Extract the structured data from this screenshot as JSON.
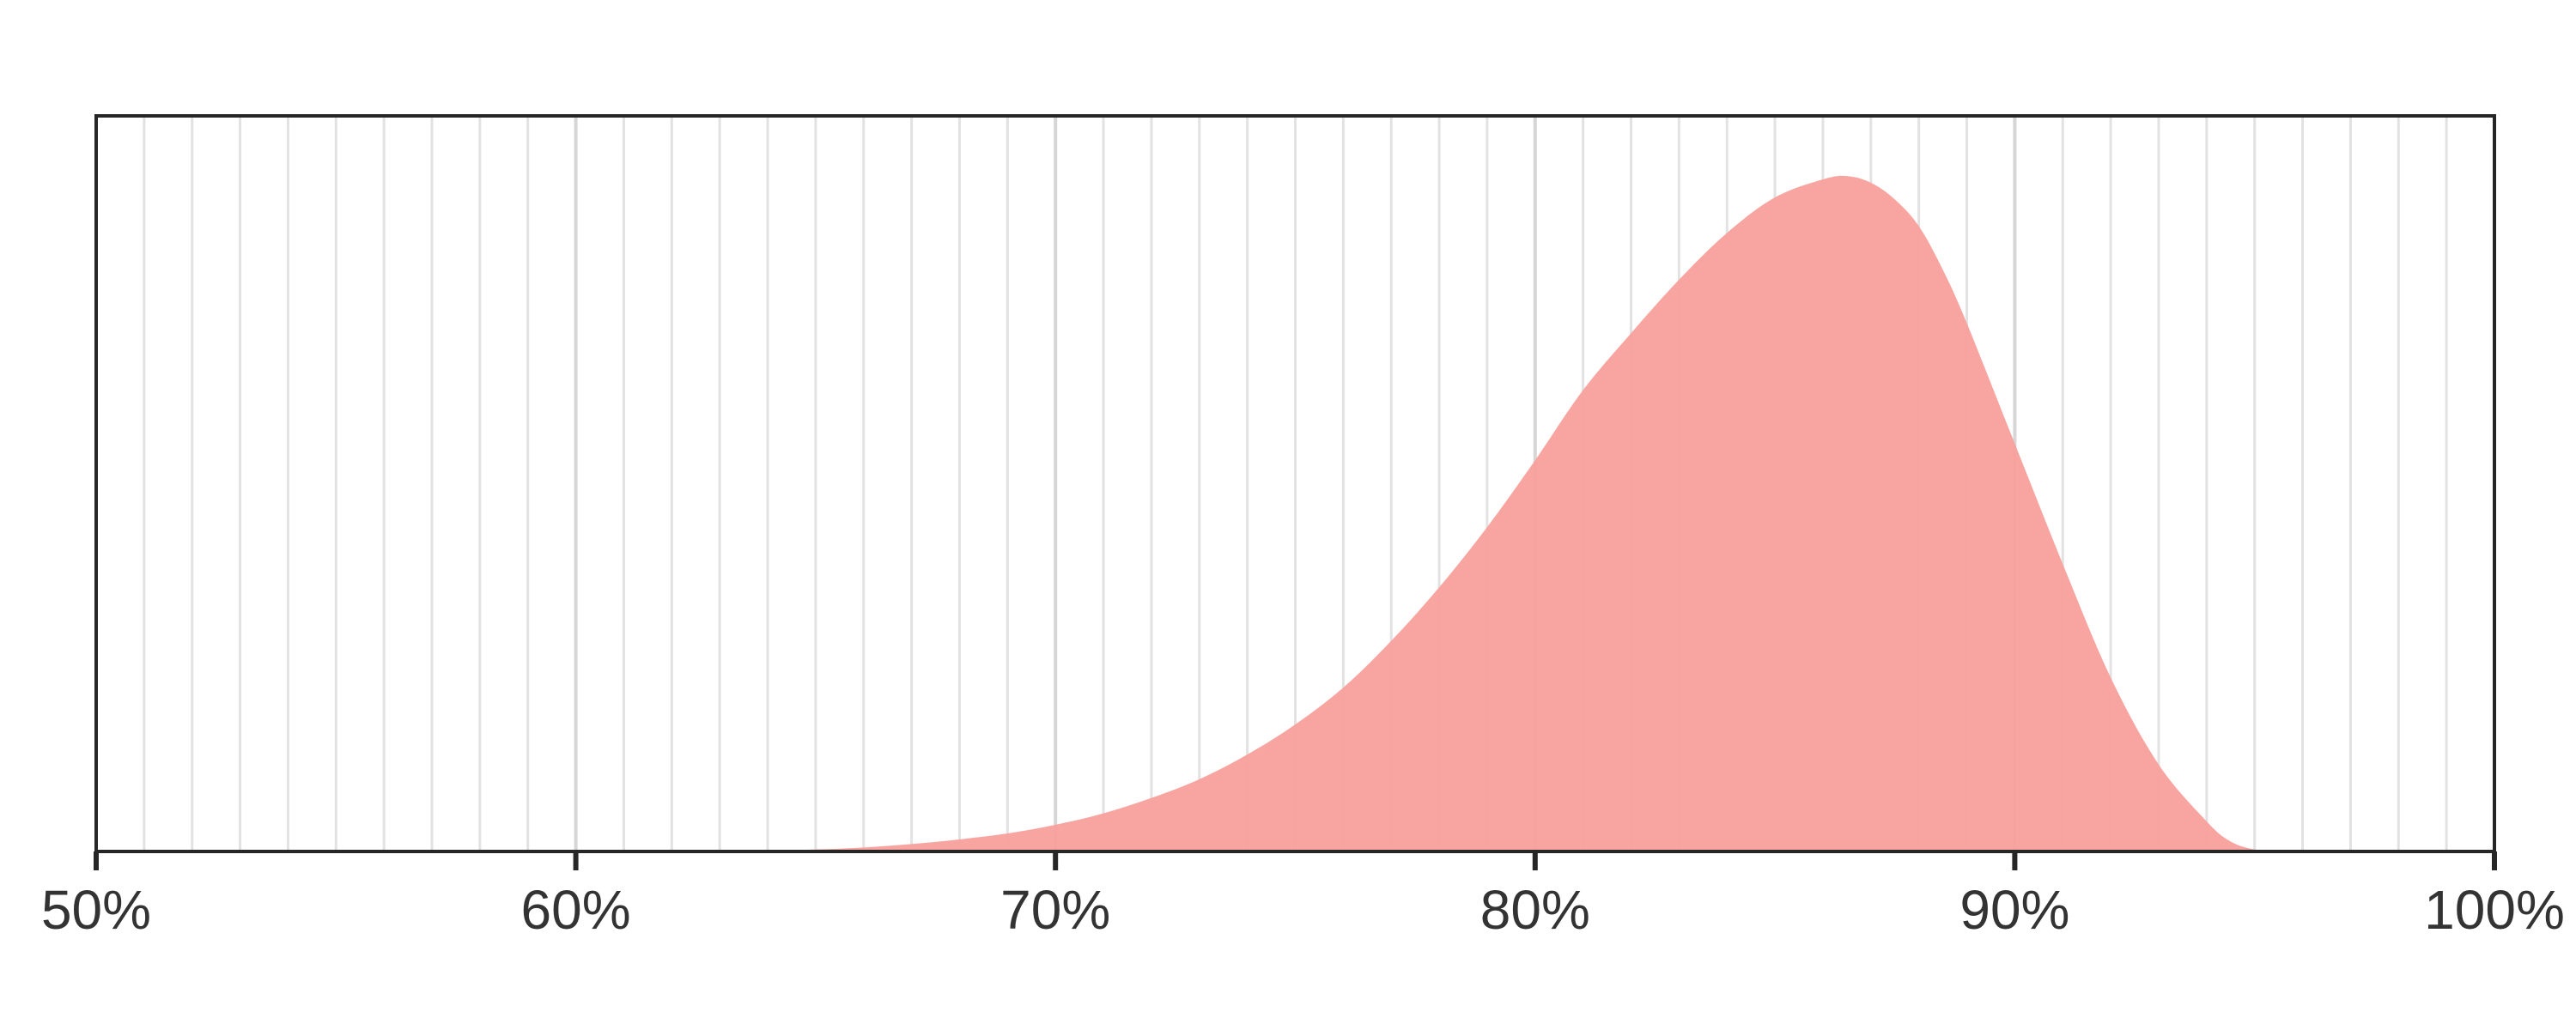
{
  "chart_data": {
    "type": "area",
    "xlim": [
      50,
      100
    ],
    "x_ticks": [
      50,
      60,
      70,
      80,
      90,
      100
    ],
    "x_tick_labels": [
      "50%",
      "60%",
      "70%",
      "80%",
      "90%",
      "100%"
    ],
    "minor_grid_step": 1,
    "grid": true,
    "ylim": [
      0,
      1.1
    ],
    "y_ticks_visible": false,
    "series": [
      {
        "x": [
          62,
          64,
          65,
          66,
          67,
          68,
          69,
          70,
          71,
          72,
          73,
          74,
          75,
          76,
          77,
          78,
          79,
          80,
          81,
          82,
          83,
          84,
          85,
          86,
          86.5,
          87,
          87.5,
          88,
          88.5,
          89,
          90,
          91,
          92,
          93,
          94,
          94.5,
          95,
          95.5
        ],
        "y": [
          0.0,
          0.001,
          0.003,
          0.006,
          0.011,
          0.018,
          0.027,
          0.04,
          0.057,
          0.08,
          0.108,
          0.145,
          0.19,
          0.245,
          0.315,
          0.395,
          0.485,
          0.585,
          0.69,
          0.775,
          0.855,
          0.925,
          0.978,
          1.005,
          1.01,
          1.0,
          0.975,
          0.935,
          0.87,
          0.79,
          0.61,
          0.43,
          0.26,
          0.13,
          0.045,
          0.015,
          0.003,
          0.0
        ],
        "color": "#f8a09c"
      }
    ]
  }
}
